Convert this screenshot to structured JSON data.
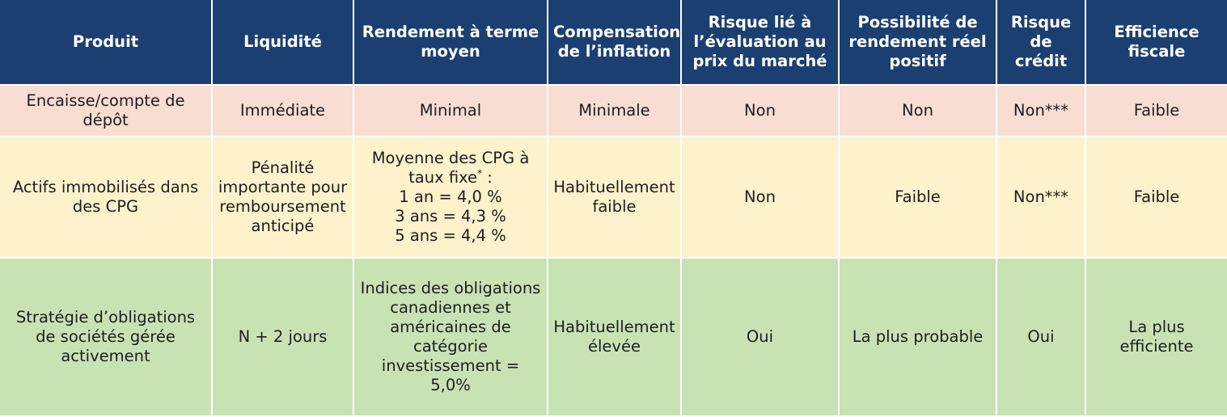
{
  "colors": {
    "header_bg": "#1c3f72",
    "row_cash_bg": "#f8ddd2",
    "row_gic_bg": "#fdf2cc",
    "row_bond_bg": "#c9e2b4"
  },
  "headers": [
    "Produit",
    "Liquidité",
    "Rendement à terme moyen",
    "Compensation de l’inflation",
    "Risque lié à l’évaluation au prix du marché",
    "Possibilité de rendement réel positif",
    "Risque de crédit",
    "Efficience fiscale"
  ],
  "rows": [
    {
      "produit": "Encaisse/compte de dépôt",
      "liquidite": "Immédiate",
      "rendement": "Minimal",
      "inflation": "Minimale",
      "risque_marche": "Non",
      "rendement_reel": "Non",
      "risque_credit": "Non***",
      "efficience": "Faible"
    },
    {
      "produit": "Actifs immobilisés dans des CPG",
      "liquidite": "Pénalité importante pour remboursement anticipé",
      "rendement_lead": "Moyenne des CPG à taux fixe",
      "rendement_mark": "*",
      "rendement_tail": " :",
      "rendement_lines": [
        "1 an = 4,0 %",
        "3 ans = 4,3 %",
        "5 ans = 4,4 %"
      ],
      "inflation": "Habituellement faible",
      "risque_marche": "Non",
      "rendement_reel": "Faible",
      "risque_credit": "Non***",
      "efficience": "Faible"
    },
    {
      "produit": "Stratégie d’obligations de sociétés gérée activement",
      "liquidite": "N + 2 jours",
      "rendement": "Indices des obligations canadiennes et américaines de catégorie investissement = 5,0%",
      "inflation": "Habituellement élevée",
      "risque_marche": "Oui",
      "rendement_reel": "La plus probable",
      "risque_credit": "Oui",
      "efficience": "La plus efficiente"
    }
  ]
}
